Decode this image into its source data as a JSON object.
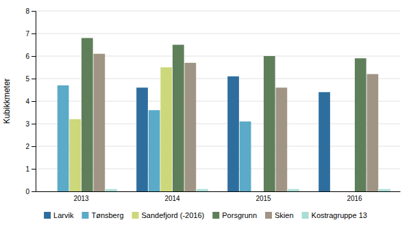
{
  "chart_data": {
    "type": "bar",
    "categories": [
      "2013",
      "2014",
      "2015",
      "2016"
    ],
    "series": [
      {
        "name": "Larvik",
        "color": "#2e6e9e",
        "values": [
          0.0,
          4.6,
          5.1,
          4.4
        ]
      },
      {
        "name": "Tønsberg",
        "color": "#5aaac8",
        "values": [
          4.7,
          3.6,
          3.1,
          0.0
        ]
      },
      {
        "name": "Sandefjord (-2016)",
        "color": "#ccd87a",
        "values": [
          3.2,
          5.5,
          0.0,
          0.0
        ]
      },
      {
        "name": "Porsgrunn",
        "color": "#5f7f5a",
        "values": [
          6.8,
          6.5,
          6.0,
          5.9
        ]
      },
      {
        "name": "Skien",
        "color": "#a09585",
        "values": [
          6.1,
          5.7,
          4.6,
          5.2
        ]
      },
      {
        "name": "Kostragruppe 13",
        "color": "#aaddd5",
        "values": [
          0.1,
          0.1,
          0.1,
          0.1
        ]
      }
    ],
    "ylabel": "Kubikkmeter",
    "ylim": [
      0,
      8
    ],
    "yticks": [
      0,
      1,
      2,
      3,
      4,
      5,
      6,
      7,
      8
    ],
    "grid": true,
    "legend": "bottom"
  }
}
